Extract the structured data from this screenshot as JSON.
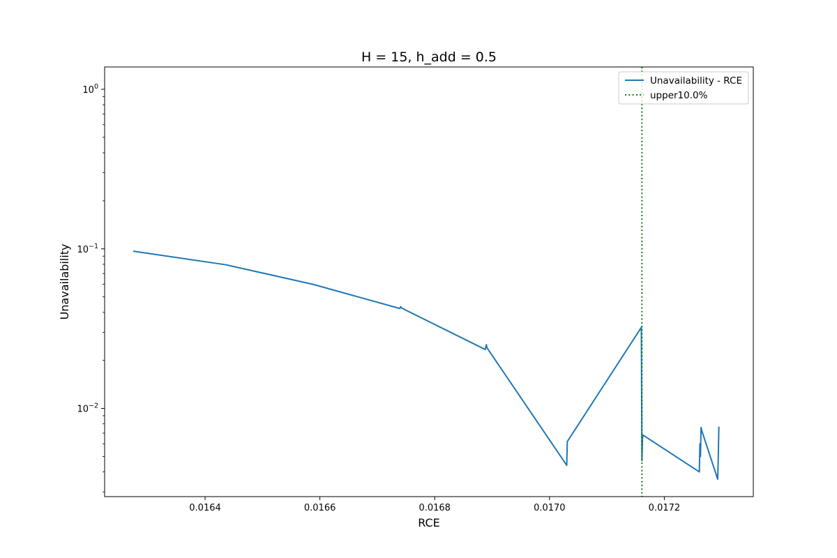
{
  "chart_data": {
    "type": "line",
    "title": "H = 15, h_add = 0.5",
    "xlabel": "RCE",
    "ylabel": "Unavailability",
    "yscale": "log",
    "xlim": [
      0.016225,
      0.017355
    ],
    "ylim": [
      0.0028,
      1.38
    ],
    "x_ticks": [
      0.0164,
      0.0166,
      0.0168,
      0.017,
      0.0172
    ],
    "x_tick_labels": [
      "0.0164",
      "0.0166",
      "0.0168",
      "0.0170",
      "0.0172"
    ],
    "y_major_ticks": [
      0.01,
      0.1,
      1
    ],
    "y_tick_labels": [
      {
        "base": "10",
        "exp": "−2"
      },
      {
        "base": "10",
        "exp": "−1"
      },
      {
        "base": "10",
        "exp": "0"
      }
    ],
    "grid": false,
    "legend_position": "top-right",
    "series": [
      {
        "name": "Unavailability - RCE",
        "color": "#1f77b4",
        "style": "solid",
        "x": [
          0.016276,
          0.016436,
          0.016589,
          0.016739,
          0.016741,
          0.016742,
          0.016888,
          0.01689,
          0.016891,
          0.01703,
          0.017031,
          0.01716,
          0.017161,
          0.017162,
          0.017163,
          0.017261,
          0.017262,
          0.017263,
          0.017264,
          0.017265,
          0.017293,
          0.017294,
          0.017295
        ],
        "y": [
          0.0965,
          0.0795,
          0.0598,
          0.0423,
          0.0434,
          0.0426,
          0.0234,
          0.0251,
          0.024,
          0.0044,
          0.0062,
          0.0322,
          0.0047,
          0.0065,
          0.0068,
          0.004,
          0.006,
          0.005,
          0.0076,
          0.0073,
          0.0036,
          0.005,
          0.0076
        ]
      },
      {
        "name": "upper10.0%",
        "color": "#008000",
        "style": "dotted",
        "vline_x": 0.017161
      }
    ]
  }
}
